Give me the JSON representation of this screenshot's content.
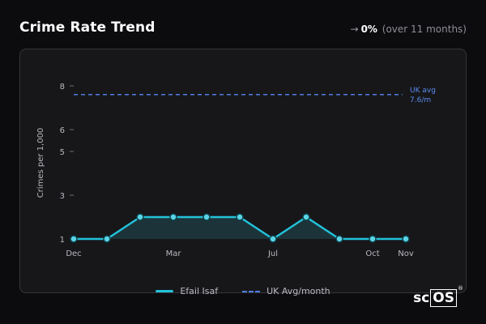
{
  "header": {
    "title": "Crime Rate Trend",
    "trend_arrow": "→",
    "trend_value": "0%",
    "trend_period": "(over 11 months)"
  },
  "colors": {
    "series": "#22c1d9",
    "reference": "#4f7de0",
    "area_fill": "#1d3a40"
  },
  "chart_data": {
    "type": "line",
    "ylabel": "Crimes per 1,000",
    "xlabel": "",
    "ylim": [
      1,
      8
    ],
    "y_ticks": [
      1,
      3,
      5,
      6,
      8
    ],
    "x_tick_labels": [
      {
        "index": 0,
        "label": "Dec"
      },
      {
        "index": 3,
        "label": "Mar"
      },
      {
        "index": 6,
        "label": "Jul"
      },
      {
        "index": 9,
        "label": "Oct"
      },
      {
        "index": 10,
        "label": "Nov"
      }
    ],
    "series": [
      {
        "name": "Efail Isaf",
        "values": [
          1,
          1,
          2,
          2,
          2,
          2,
          1,
          2,
          1,
          1,
          1
        ]
      }
    ],
    "reference_line": {
      "name": "UK Avg/month",
      "value": 7.6,
      "annotation_line1": "UK avg",
      "annotation_line2": "7.6/m"
    },
    "grid": false
  },
  "legend": [
    {
      "label": "Efail Isaf",
      "style": "solid"
    },
    {
      "label": "UK Avg/month",
      "style": "dashed"
    }
  ],
  "logo": {
    "text_plain": "sc",
    "text_boxed": "OS",
    "mark": "®"
  }
}
